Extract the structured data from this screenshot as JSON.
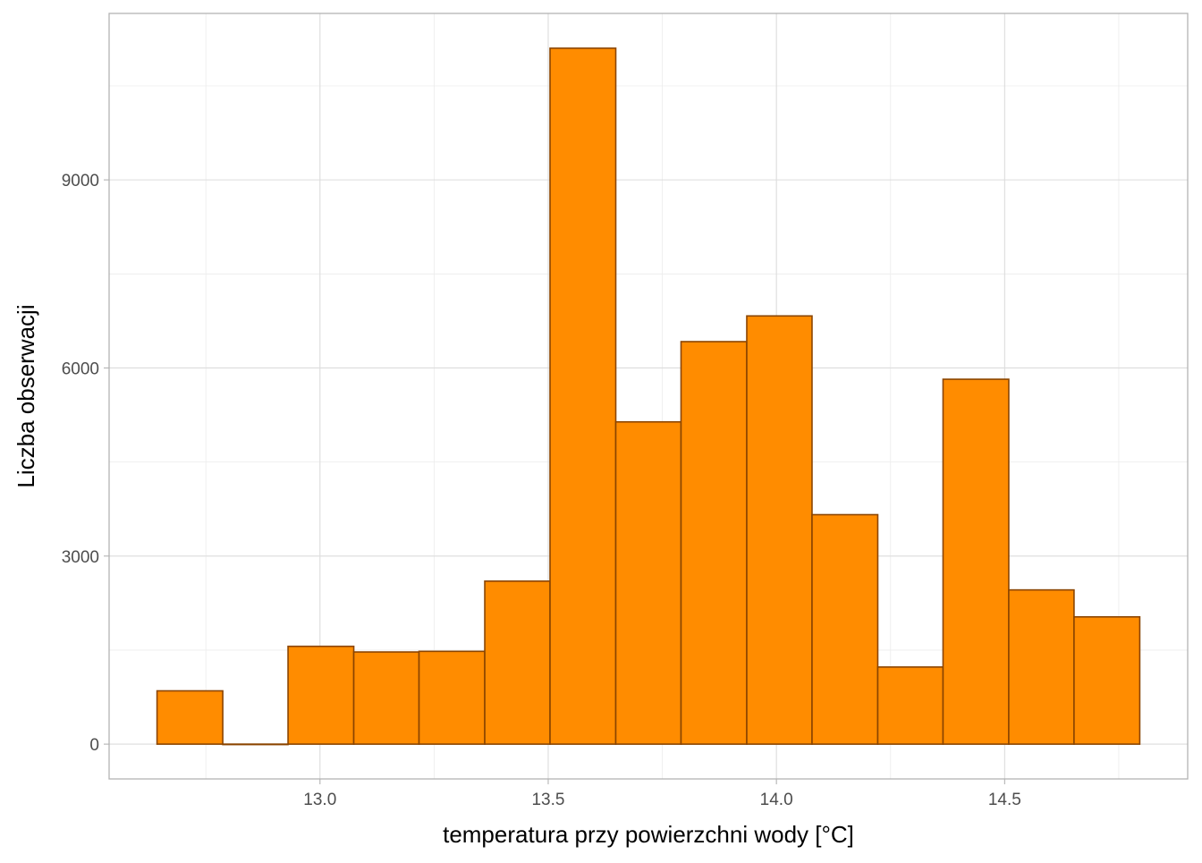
{
  "chart_data": {
    "type": "bar",
    "subtype": "histogram",
    "title": "",
    "xlabel": "temperatura przy powierzchni wody [°C]",
    "ylabel": "Liczba obserwacji",
    "bin_width": 0.1435,
    "bins": [
      {
        "x_start": 12.643,
        "x_end": 12.787,
        "count": 850
      },
      {
        "x_start": 12.787,
        "x_end": 12.93,
        "count": 0
      },
      {
        "x_start": 12.93,
        "x_end": 13.074,
        "count": 1560
      },
      {
        "x_start": 13.074,
        "x_end": 13.217,
        "count": 1470
      },
      {
        "x_start": 13.217,
        "x_end": 13.361,
        "count": 1480
      },
      {
        "x_start": 13.361,
        "x_end": 13.504,
        "count": 2600
      },
      {
        "x_start": 13.504,
        "x_end": 13.648,
        "count": 11100
      },
      {
        "x_start": 13.648,
        "x_end": 13.791,
        "count": 5140
      },
      {
        "x_start": 13.791,
        "x_end": 13.935,
        "count": 6420
      },
      {
        "x_start": 13.935,
        "x_end": 14.078,
        "count": 6830
      },
      {
        "x_start": 14.078,
        "x_end": 14.222,
        "count": 3660
      },
      {
        "x_start": 14.222,
        "x_end": 14.365,
        "count": 1230
      },
      {
        "x_start": 14.365,
        "x_end": 14.509,
        "count": 5820
      },
      {
        "x_start": 14.509,
        "x_end": 14.652,
        "count": 2460
      },
      {
        "x_start": 14.652,
        "x_end": 14.796,
        "count": 2030
      }
    ],
    "xlim": [
      12.538,
      14.901
    ],
    "ylim": [
      -555,
      11655
    ],
    "x_ticks": [
      13.0,
      13.5,
      14.0,
      14.5
    ],
    "x_tick_labels": [
      "13.0",
      "13.5",
      "14.0",
      "14.5"
    ],
    "x_minor_ticks": [
      12.75,
      13.25,
      13.75,
      14.25,
      14.75
    ],
    "y_ticks": [
      0,
      3000,
      6000,
      9000
    ],
    "y_tick_labels": [
      "0",
      "3000",
      "6000",
      "9000"
    ],
    "y_minor_ticks": [
      1500,
      4500,
      7500,
      10500
    ],
    "grid": true,
    "legend": false,
    "colors": {
      "bar_fill": "#FF8C00",
      "bar_stroke": "#8B4500",
      "panel_border": "#B3B3B3",
      "grid": "#DCDCDC"
    }
  }
}
